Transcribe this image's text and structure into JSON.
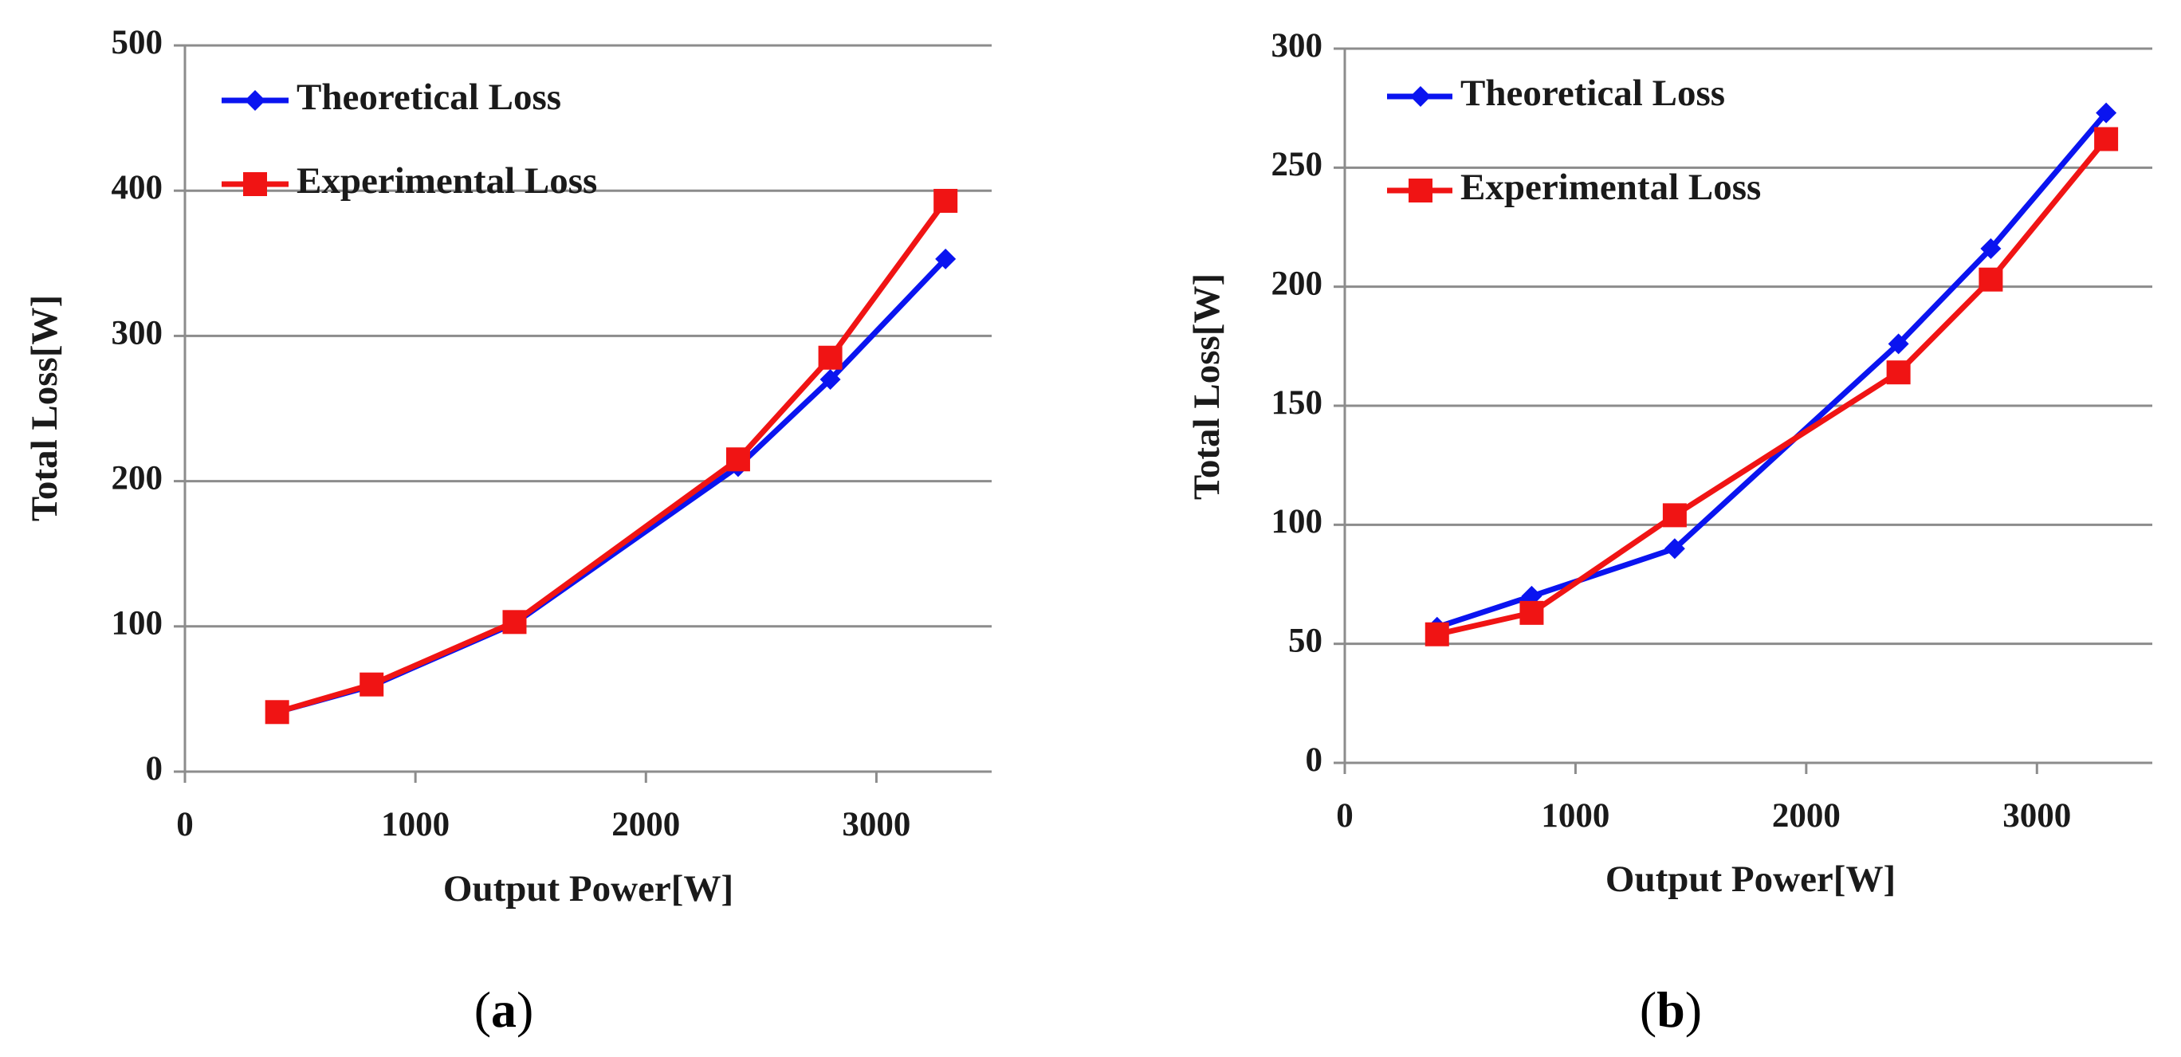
{
  "chart_data": [
    {
      "type": "line",
      "panel_label": "a",
      "xlabel": "Output Power[W]",
      "ylabel": "Total Loss[W]",
      "xlim": [
        0,
        3500
      ],
      "ylim": [
        0,
        500
      ],
      "xticks": [
        0,
        1000,
        2000,
        3000
      ],
      "yticks": [
        0,
        100,
        200,
        300,
        400,
        500
      ],
      "grid": "horizontal",
      "legend": "top-left",
      "series": [
        {
          "name": "Theoretical Loss",
          "color": "#0a14f0",
          "marker": "diamond",
          "x": [
            400,
            810,
            1430,
            2400,
            2800,
            3300
          ],
          "y": [
            41,
            59,
            102,
            210,
            270,
            353
          ]
        },
        {
          "name": "Experimental Loss",
          "color": "#f01414",
          "marker": "square",
          "x": [
            400,
            810,
            1430,
            2400,
            2800,
            3300
          ],
          "y": [
            41,
            60,
            103,
            215,
            285,
            393
          ]
        }
      ]
    },
    {
      "type": "line",
      "panel_label": "b",
      "xlabel": "Output Power[W]",
      "ylabel": "Total Loss[W]",
      "xlim": [
        0,
        3500
      ],
      "ylim": [
        0,
        300
      ],
      "xticks": [
        0,
        1000,
        2000,
        3000
      ],
      "yticks": [
        0,
        50,
        100,
        150,
        200,
        250,
        300
      ],
      "grid": "horizontal",
      "legend": "top-left",
      "series": [
        {
          "name": "Theoretical Loss",
          "color": "#0a14f0",
          "marker": "diamond",
          "x": [
            400,
            810,
            1430,
            2400,
            2800,
            3300
          ],
          "y": [
            57,
            70,
            90,
            176,
            216,
            273
          ]
        },
        {
          "name": "Experimental Loss",
          "color": "#f01414",
          "marker": "square",
          "x": [
            400,
            810,
            1430,
            2400,
            2800,
            3300
          ],
          "y": [
            54,
            63,
            104,
            164,
            203,
            262
          ]
        }
      ]
    }
  ]
}
